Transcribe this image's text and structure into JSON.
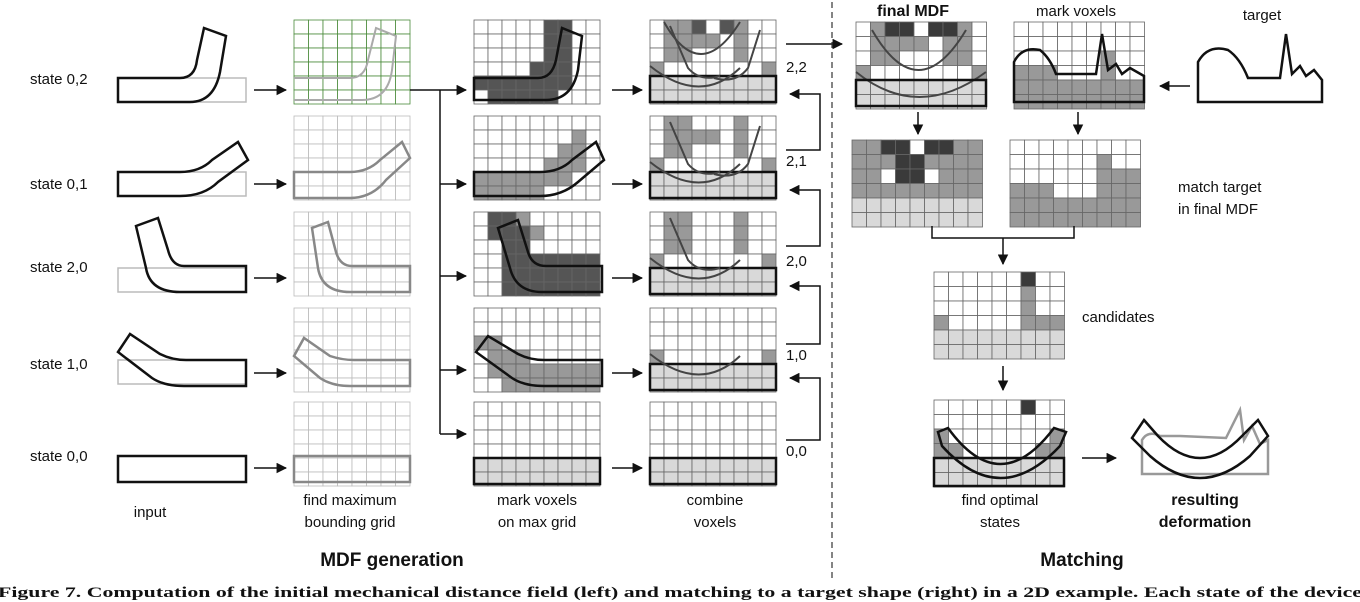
{
  "states": [
    "state 0,2",
    "state 0,1",
    "state 2,0",
    "state 1,0",
    "state 0,0"
  ],
  "combine_labels": [
    "2,2",
    "2,1",
    "2,0",
    "1,0",
    "0,0"
  ],
  "columns": {
    "input": "input",
    "find_grid_line1": "find maximum",
    "find_grid_line2": "bounding grid",
    "mark_line1": "mark voxels",
    "mark_line2": "on max grid",
    "combine_line1": "combine",
    "combine_line2": "voxels"
  },
  "sections": {
    "left": "MDF generation",
    "right": "Matching"
  },
  "matching": {
    "final_mdf": "final MDF",
    "mark_voxels": "mark voxels",
    "target": "target",
    "match_line1": "match target",
    "match_line2": "in final MDF",
    "candidates": "candidates",
    "optimal_line1": "find optimal",
    "optimal_line2": "states",
    "result_line1": "resulting",
    "result_line2": "deformation"
  },
  "caption": "Figure 7. Computation of the initial mechanical distance field (left) and matching to a target shape (right) in a 2D example. Each state of the device",
  "colors": {
    "dark": "#555555",
    "mid": "#999999",
    "light": "#d9d9d9",
    "top": "#3a3a3a",
    "green_grid": "#4a8a3a"
  }
}
